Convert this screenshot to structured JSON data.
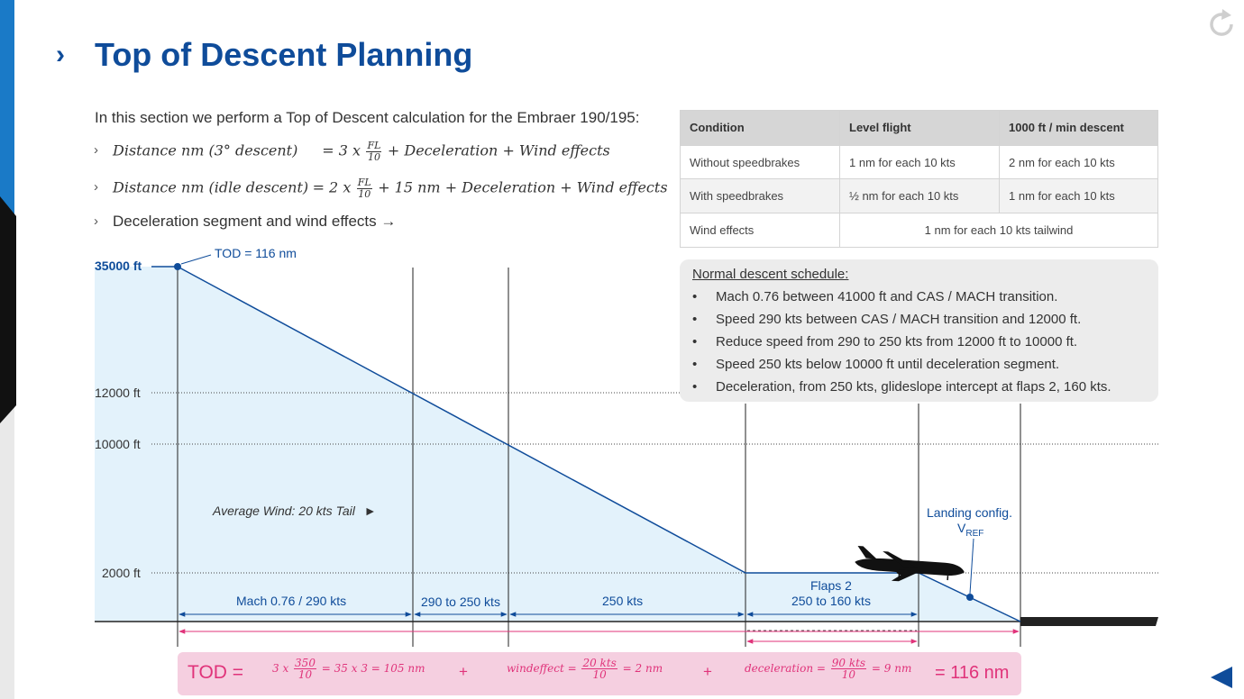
{
  "slide": {
    "title": "Top of Descent Planning",
    "intro": "In this section we perform a Top of Descent calculation for the Embraer 190/195:",
    "bullet_marker": "›",
    "formula1": {
      "lhs": "Distance nm (3° descent)",
      "eq": "= 3 x",
      "frac_num": "FL",
      "frac_den": "10",
      "rest": "+ Deceleration + Wind effects"
    },
    "formula2": {
      "lhs": "Distance nm (idle descent)",
      "eq": "= 2 x",
      "frac_num": "FL",
      "frac_den": "10",
      "rest": "+ 15 nm + Deceleration + Wind effects"
    },
    "bullet3": "Deceleration segment and wind effects →"
  },
  "table": {
    "headers": [
      "Condition",
      "Level flight",
      "1000 ft / min descent"
    ],
    "rows": [
      [
        "Without speedbrakes",
        "1 nm for each 10 kts",
        "2 nm for each 10 kts"
      ],
      [
        "With speedbrakes",
        "½ nm for each 10 kts",
        "1 nm for each 10 kts"
      ]
    ],
    "wind_row": [
      "Wind effects",
      "1 nm for each 10 kts tailwind"
    ]
  },
  "schedule": {
    "title": "Normal descent schedule:",
    "bullet": "•",
    "items": [
      "Mach 0.76 between 41000 ft and CAS / MACH transition.",
      "Speed 290 kts between CAS / MACH transition and 12000 ft.",
      "Reduce speed from 290 to 250 kts from 12000 ft to 10000 ft.",
      "Speed 250 kts below 10000 ft until deceleration segment.",
      "Deceleration, from 250 kts, glideslope intercept at flaps 2, 160 kts."
    ]
  },
  "profile": {
    "altitudes": [
      "35000 ft",
      "12000 ft",
      "10000 ft",
      "2000 ft"
    ],
    "tod_label": "TOD = 116 nm",
    "wind_label": "Average Wind: 20 kts Tail",
    "wind_arrow": "►",
    "segments": [
      "Mach 0.76 / 290 kts",
      "290 to 250 kts",
      "250 kts"
    ],
    "flaps_label": "Flaps 2",
    "flaps_speed": "250 to 160 kts",
    "landing_label": "Landing config.",
    "vref_main": "V",
    "vref_sub": "REF",
    "colors": {
      "profile_line": "#0f4c9a",
      "profile_fill": "#e3f2fb",
      "distance_arrow": "#e0337a"
    }
  },
  "tod_calc": {
    "label": "TOD =",
    "term1_pre": "3 x",
    "term1_num": "350",
    "term1_den": "10",
    "term1_post": "= 35 x 3 = 105 nm",
    "plus": "+",
    "term2_pre": "windeffect =",
    "term2_num": "20 kts",
    "term2_den": "10",
    "term2_post": "= 2 nm",
    "term3_pre": "deceleration =",
    "term3_num": "90 kts",
    "term3_den": "10",
    "term3_post": "= 9 nm",
    "result": "= 116 nm"
  },
  "controls": {
    "replay_icon": "replay-icon",
    "back_icon": "back-arrow-icon"
  }
}
